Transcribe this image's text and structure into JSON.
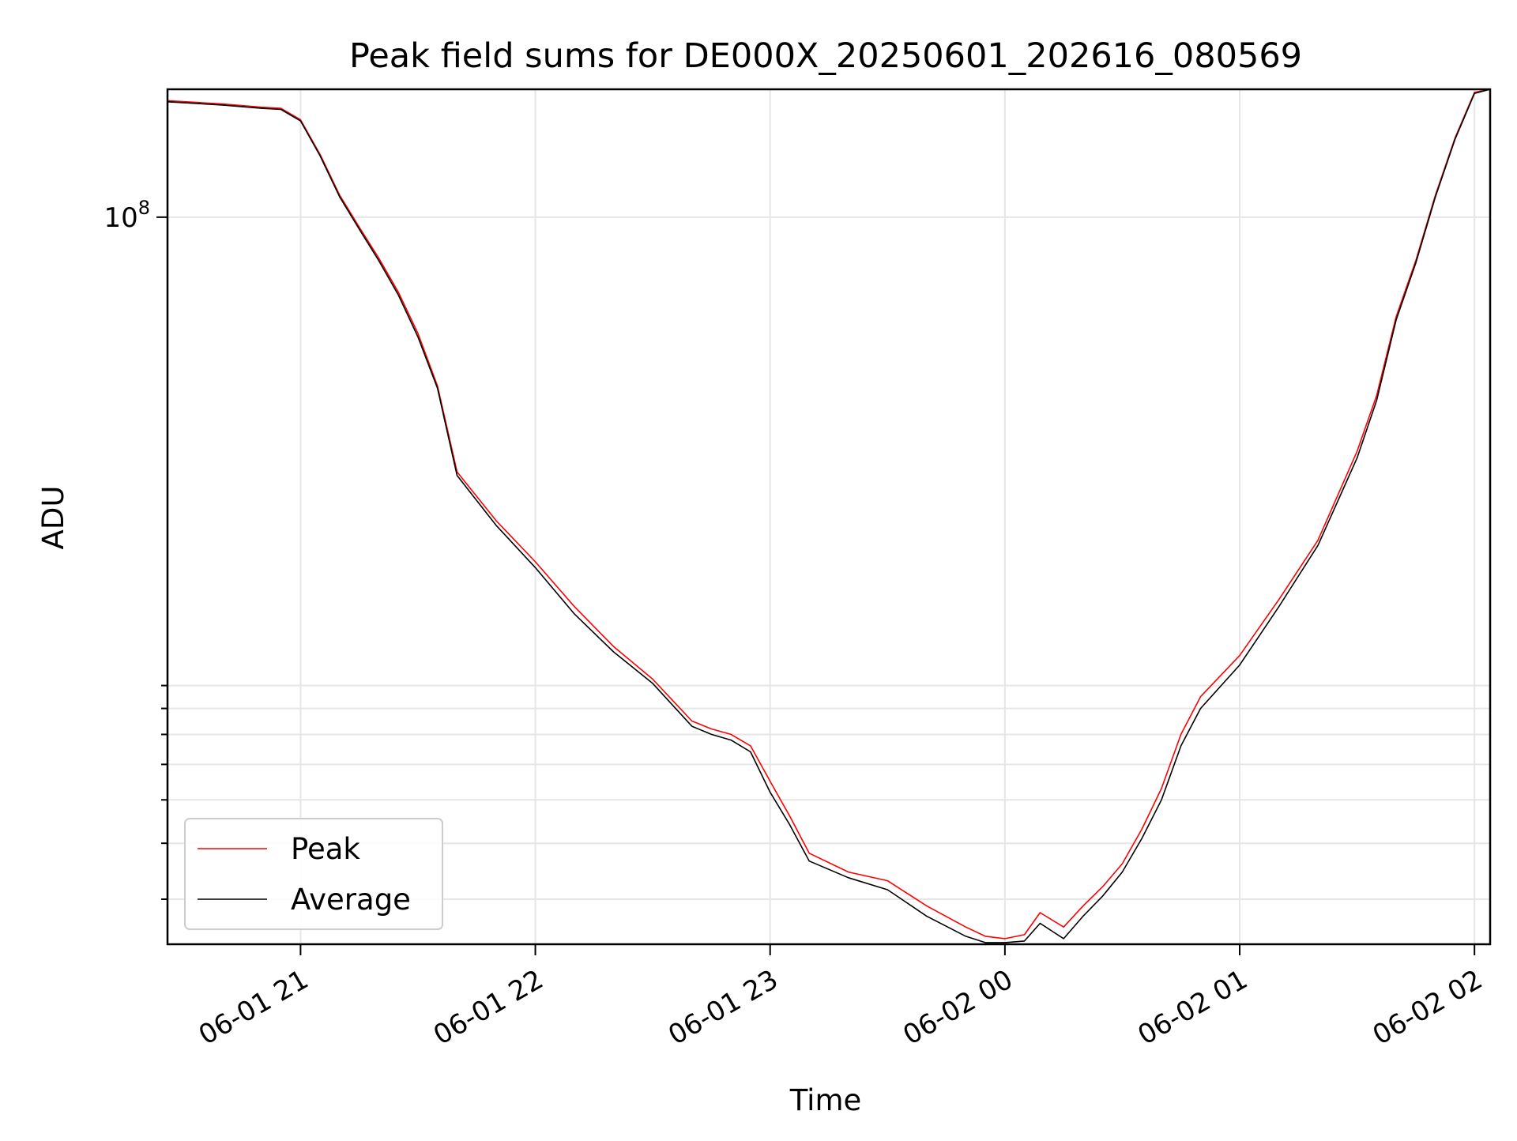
{
  "chart_data": {
    "type": "line",
    "title": "Peak field sums for DE000X_20250601_202616_080569",
    "xlabel": "Time",
    "ylabel": "ADU",
    "yscale": "log",
    "xlim": [
      "2025-06-01 20:26",
      "2025-06-02 02:04"
    ],
    "ylim": [
      2380000,
      193000000
    ],
    "x_ticks": [
      {
        "value": "2025-06-01 21:00",
        "label": "06-01 21"
      },
      {
        "value": "2025-06-01 22:00",
        "label": "06-01 22"
      },
      {
        "value": "2025-06-01 23:00",
        "label": "06-01 23"
      },
      {
        "value": "2025-06-02 00:00",
        "label": "06-02 00"
      },
      {
        "value": "2025-06-02 01:00",
        "label": "06-02 01"
      },
      {
        "value": "2025-06-02 02:00",
        "label": "06-02 02"
      }
    ],
    "y_major_ticks": [
      {
        "value": 100000000,
        "label": "10",
        "exp": "8"
      }
    ],
    "y_minor_ticks": [
      3000000,
      4000000,
      5000000,
      6000000,
      7000000,
      8000000,
      9000000,
      200000000
    ],
    "grid": true,
    "legend_position": "lower-left",
    "series": [
      {
        "name": "Peak",
        "color": "#ff0000",
        "x": [
          "2025-06-01 20:26",
          "2025-06-01 20:40",
          "2025-06-01 20:50",
          "2025-06-01 20:55",
          "2025-06-01 21:00",
          "2025-06-01 21:05",
          "2025-06-01 21:10",
          "2025-06-01 21:15",
          "2025-06-01 21:20",
          "2025-06-01 21:25",
          "2025-06-01 21:30",
          "2025-06-01 21:35",
          "2025-06-01 21:40",
          "2025-06-01 21:50",
          "2025-06-01 22:00",
          "2025-06-01 22:10",
          "2025-06-01 22:20",
          "2025-06-01 22:30",
          "2025-06-01 22:40",
          "2025-06-01 22:45",
          "2025-06-01 22:50",
          "2025-06-01 22:55",
          "2025-06-01 23:00",
          "2025-06-01 23:05",
          "2025-06-01 23:10",
          "2025-06-01 23:20",
          "2025-06-01 23:30",
          "2025-06-01 23:40",
          "2025-06-01 23:50",
          "2025-06-01 23:55",
          "2025-06-02 00:00",
          "2025-06-02 00:05",
          "2025-06-02 00:09",
          "2025-06-02 00:15",
          "2025-06-02 00:20",
          "2025-06-02 00:25",
          "2025-06-02 00:30",
          "2025-06-02 00:35",
          "2025-06-02 00:40",
          "2025-06-02 00:45",
          "2025-06-02 00:50",
          "2025-06-02 01:00",
          "2025-06-02 01:10",
          "2025-06-02 01:20",
          "2025-06-02 01:30",
          "2025-06-02 01:35",
          "2025-06-02 01:40",
          "2025-06-02 01:45",
          "2025-06-02 01:50",
          "2025-06-02 01:55",
          "2025-06-02 02:00",
          "2025-06-02 02:04"
        ],
        "y": [
          182000000,
          179000000,
          176000000,
          175000000,
          165000000,
          138000000,
          112000000,
          95000000,
          81000000,
          68000000,
          55000000,
          42000000,
          27000000,
          21000000,
          17000000,
          13500000,
          11000000,
          9300000,
          7500000,
          7200000,
          7000000,
          6600000,
          5500000,
          4600000,
          3800000,
          3450000,
          3300000,
          2900000,
          2600000,
          2480000,
          2450000,
          2500000,
          2800000,
          2600000,
          2900000,
          3200000,
          3600000,
          4300000,
          5300000,
          7000000,
          8500000,
          10500000,
          14000000,
          19000000,
          30000000,
          40000000,
          60000000,
          80000000,
          112000000,
          150000000,
          190000000,
          193000000
        ]
      },
      {
        "name": "Average",
        "color": "#000000",
        "x": [
          "2025-06-01 20:26",
          "2025-06-01 20:40",
          "2025-06-01 20:50",
          "2025-06-01 20:55",
          "2025-06-01 21:00",
          "2025-06-01 21:05",
          "2025-06-01 21:10",
          "2025-06-01 21:15",
          "2025-06-01 21:20",
          "2025-06-01 21:25",
          "2025-06-01 21:30",
          "2025-06-01 21:35",
          "2025-06-01 21:40",
          "2025-06-01 21:50",
          "2025-06-01 22:00",
          "2025-06-01 22:10",
          "2025-06-01 22:20",
          "2025-06-01 22:30",
          "2025-06-01 22:40",
          "2025-06-01 22:45",
          "2025-06-01 22:50",
          "2025-06-01 22:55",
          "2025-06-01 23:00",
          "2025-06-01 23:05",
          "2025-06-01 23:10",
          "2025-06-01 23:20",
          "2025-06-01 23:30",
          "2025-06-01 23:40",
          "2025-06-01 23:50",
          "2025-06-01 23:55",
          "2025-06-02 00:00",
          "2025-06-02 00:05",
          "2025-06-02 00:09",
          "2025-06-02 00:15",
          "2025-06-02 00:20",
          "2025-06-02 00:25",
          "2025-06-02 00:30",
          "2025-06-02 00:35",
          "2025-06-02 00:40",
          "2025-06-02 00:45",
          "2025-06-02 00:50",
          "2025-06-02 01:00",
          "2025-06-02 01:10",
          "2025-06-02 01:20",
          "2025-06-02 01:30",
          "2025-06-02 01:35",
          "2025-06-02 01:40",
          "2025-06-02 01:45",
          "2025-06-02 01:50",
          "2025-06-02 01:55",
          "2025-06-02 02:00",
          "2025-06-02 02:04"
        ],
        "y": [
          181000000,
          178000000,
          175000000,
          174000000,
          164000000,
          137000000,
          111000000,
          94000000,
          80000000,
          67000000,
          54000000,
          41500000,
          26500000,
          20500000,
          16500000,
          13000000,
          10700000,
          9100000,
          7300000,
          7000000,
          6800000,
          6400000,
          5200000,
          4400000,
          3650000,
          3350000,
          3150000,
          2750000,
          2480000,
          2400000,
          2400000,
          2420000,
          2650000,
          2450000,
          2750000,
          3050000,
          3450000,
          4100000,
          5000000,
          6600000,
          8000000,
          10000000,
          13500000,
          18500000,
          29000000,
          39000000,
          59000000,
          79000000,
          111000000,
          149000000,
          189000000,
          193000000
        ]
      }
    ]
  }
}
